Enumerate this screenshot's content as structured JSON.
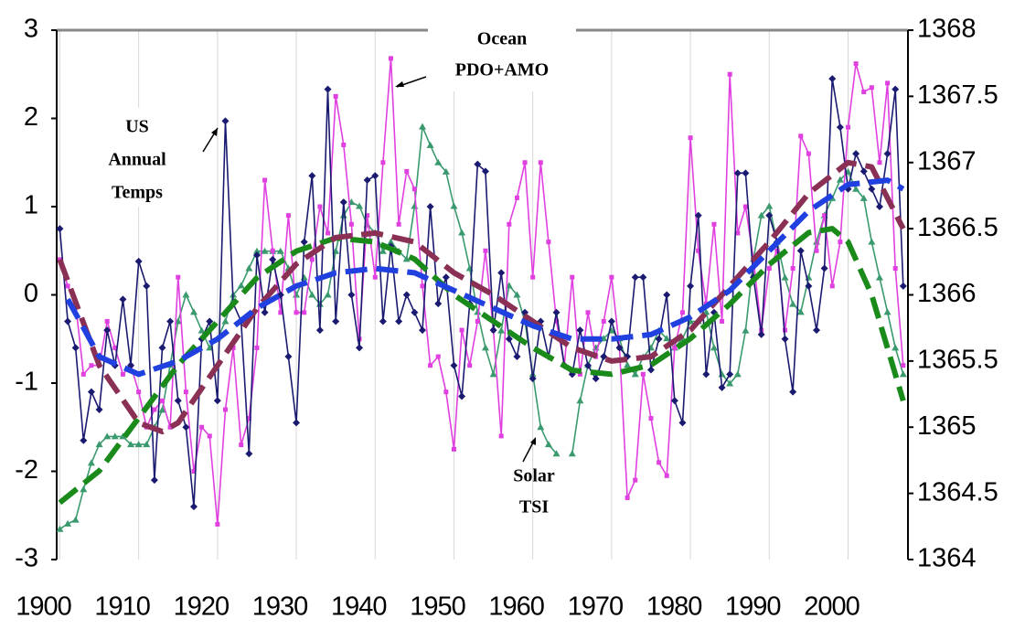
{
  "chart_data": {
    "type": "line",
    "x": [
      1900,
      1901,
      1902,
      1903,
      1904,
      1905,
      1906,
      1907,
      1908,
      1909,
      1910,
      1911,
      1912,
      1913,
      1914,
      1915,
      1916,
      1917,
      1918,
      1919,
      1920,
      1921,
      1922,
      1923,
      1924,
      1925,
      1926,
      1927,
      1928,
      1929,
      1930,
      1931,
      1932,
      1933,
      1934,
      1935,
      1936,
      1937,
      1938,
      1939,
      1940,
      1941,
      1942,
      1943,
      1944,
      1945,
      1946,
      1947,
      1948,
      1949,
      1950,
      1951,
      1952,
      1953,
      1954,
      1955,
      1956,
      1957,
      1958,
      1959,
      1960,
      1961,
      1962,
      1963,
      1964,
      1965,
      1966,
      1967,
      1968,
      1969,
      1970,
      1971,
      1972,
      1973,
      1974,
      1975,
      1976,
      1977,
      1978,
      1979,
      1980,
      1981,
      1982,
      1983,
      1984,
      1985,
      1986,
      1987,
      1988,
      1989,
      1990,
      1991,
      1992,
      1993,
      1994,
      1995,
      1996,
      1997,
      1998,
      1999,
      2000,
      2001,
      2002,
      2003,
      2004,
      2005,
      2006,
      2007
    ],
    "xlim": [
      1899.6,
      2007.6
    ],
    "xticks": [
      1900,
      1910,
      1920,
      1930,
      1940,
      1950,
      1960,
      1970,
      1980,
      1990,
      2000
    ],
    "ylim": [
      -3,
      3
    ],
    "yticks": [
      -3,
      -2,
      -1,
      0,
      1,
      2,
      3
    ],
    "y2lim": [
      1364,
      1368
    ],
    "y2ticks": [
      1364,
      1364.5,
      1365,
      1365.5,
      1366,
      1366.5,
      1367,
      1367.5,
      1368
    ],
    "grid": true,
    "annotations": [
      {
        "lines": [
          "US",
          "Annual",
          "Temps"
        ]
      },
      {
        "lines": [
          "Ocean",
          "PDO+AMO"
        ]
      },
      {
        "lines": [
          "Solar",
          "TSI"
        ]
      }
    ],
    "series": [
      {
        "color": "#3a9a6e",
        "marker": "triangle",
        "axis": "y2",
        "values": [
          1364.23,
          1364.27,
          1364.3,
          1364.53,
          1364.73,
          1364.87,
          1364.93,
          1364.93,
          1364.93,
          1364.87,
          1364.87,
          1364.87,
          1365.0,
          1365.13,
          1365.47,
          1365.8,
          1366.0,
          1365.87,
          1365.73,
          1365.6,
          1365.67,
          1365.8,
          1366.0,
          1366.07,
          1366.2,
          1366.33,
          1366.33,
          1366.33,
          1366.33,
          1366.2,
          1366.0,
          1366.13,
          1366.0,
          1365.93,
          1366.0,
          1366.33,
          1366.6,
          1366.7,
          1366.67,
          1366.53,
          1366.47,
          1366.33,
          1366.4,
          1366.33,
          1366.27,
          1366.67,
          1367.27,
          1367.13,
          1367.0,
          1366.93,
          1366.67,
          1366.47,
          1366.2,
          1365.87,
          1365.6,
          1365.4,
          1365.73,
          1366.07,
          1366.0,
          1365.8,
          1365.4,
          1365.0,
          1364.87,
          1364.8,
          null,
          1364.8,
          1365.2,
          1365.47,
          1365.6,
          1365.67,
          1365.73,
          1365.67,
          1365.47,
          1365.4,
          1365.53,
          1365.6,
          1365.73,
          1365.67,
          1365.6,
          1365.67,
          1365.8,
          1365.8,
          1365.87,
          1365.6,
          1365.4,
          1365.33,
          1365.4,
          1365.73,
          1366.27,
          1366.6,
          1366.67,
          1366.4,
          1366.13,
          1365.93,
          1365.87,
          1366.13,
          1366.4,
          1366.6,
          1366.73,
          1366.87,
          1366.93,
          1366.8,
          1366.73,
          1366.4,
          1366.13,
          1365.87,
          1365.6,
          1365.4
        ]
      },
      {
        "color": "#e040e0",
        "marker": "square",
        "values": [
          0.4,
          0.1,
          -0.1,
          -0.9,
          -0.8,
          -0.8,
          -0.3,
          -0.6,
          -0.9,
          -0.8,
          -1.1,
          -1.5,
          -1.3,
          -1.2,
          -1.5,
          0.2,
          -1.1,
          -2.0,
          -1.5,
          -1.6,
          -2.6,
          -1.3,
          -0.6,
          -1.7,
          -1.4,
          -0.6,
          1.3,
          0.5,
          -0.2,
          0.9,
          -0.2,
          -0.2,
          0.4,
          1.0,
          0.7,
          2.25,
          1.7,
          0.8,
          -0.5,
          0.9,
          0.2,
          1.5,
          2.68,
          0.8,
          1.4,
          1.2,
          0.1,
          -0.8,
          -0.7,
          -1.1,
          -1.75,
          -0.4,
          -0.8,
          -0.3,
          0.5,
          -0.4,
          -1.6,
          0.8,
          1.1,
          1.5,
          0.2,
          1.5,
          0.6,
          -0.3,
          -0.8,
          0.2,
          -0.9,
          -0.2,
          -0.7,
          -0.3,
          0.2,
          -0.6,
          -2.3,
          -2.1,
          -0.9,
          -1.4,
          -1.9,
          -2.05,
          -0.6,
          -0.2,
          1.78,
          0.5,
          -0.1,
          0.8,
          -0.3,
          2.5,
          0.7,
          1.0,
          0.4,
          -0.4,
          0.3,
          0.5,
          -0.4,
          0.3,
          1.8,
          1.6,
          0.5,
          0.9,
          0.1,
          0.6,
          1.9,
          2.62,
          2.3,
          2.35,
          1.5,
          2.4,
          0.3,
          -0.8
        ]
      },
      {
        "color": "#1a1a70",
        "marker": "diamond",
        "values": [
          0.75,
          -0.3,
          -0.6,
          -1.65,
          -1.1,
          -1.3,
          -0.4,
          -0.8,
          -0.05,
          -0.8,
          0.38,
          0.1,
          -2.1,
          -0.6,
          -0.3,
          -1.2,
          -1.5,
          -2.4,
          -0.5,
          -0.3,
          -1.2,
          1.97,
          -0.1,
          -0.3,
          -1.8,
          0.45,
          -0.2,
          0.4,
          0.0,
          -0.7,
          -1.45,
          0.6,
          1.35,
          -0.4,
          2.33,
          -0.3,
          1.05,
          0.0,
          -0.6,
          1.3,
          1.35,
          -0.3,
          0.55,
          -0.3,
          0.0,
          -0.2,
          -0.4,
          1.0,
          -0.1,
          0.2,
          -0.8,
          -1.15,
          -0.1,
          1.48,
          1.4,
          -0.4,
          0.25,
          -0.5,
          -0.7,
          -0.2,
          -0.95,
          -0.3,
          -0.7,
          -0.2,
          -0.8,
          -0.9,
          -0.4,
          -0.8,
          -0.95,
          -0.7,
          -0.3,
          -0.6,
          -0.7,
          0.2,
          0.2,
          -0.85,
          -0.5,
          0.0,
          -1.2,
          -1.45,
          0.1,
          0.9,
          -0.9,
          -0.2,
          -1.05,
          -0.9,
          1.38,
          1.38,
          0.2,
          -0.45,
          0.9,
          0.6,
          -0.5,
          -1.1,
          0.5,
          0.1,
          -0.4,
          0.3,
          2.45,
          1.9,
          1.2,
          1.6,
          1.4,
          1.2,
          1.0,
          1.6,
          2.33,
          0.1
        ]
      },
      {
        "color": "#1a8a1a",
        "dashed": true,
        "axis": "y2",
        "x": [
          1900,
          1905,
          1910,
          1915,
          1920,
          1925,
          1930,
          1935,
          1940,
          1945,
          1950,
          1955,
          1960,
          1965,
          1970,
          1975,
          1980,
          1985,
          1990,
          1995,
          1998,
          2000,
          2003,
          2007
        ],
        "values": [
          1364.43,
          1364.67,
          1365.07,
          1365.47,
          1365.8,
          1366.13,
          1366.33,
          1366.43,
          1366.4,
          1366.27,
          1366.0,
          1365.8,
          1365.6,
          1365.43,
          1365.4,
          1365.47,
          1365.67,
          1365.93,
          1366.23,
          1366.47,
          1366.5,
          1366.4,
          1366.0,
          1365.2
        ]
      },
      {
        "color": "#8a3055",
        "dashed": true,
        "x": [
          1900,
          1905,
          1910,
          1913,
          1915,
          1920,
          1925,
          1930,
          1935,
          1940,
          1945,
          1950,
          1955,
          1960,
          1965,
          1970,
          1975,
          1980,
          1985,
          1990,
          1995,
          2000,
          2003,
          2007
        ],
        "values": [
          0.4,
          -0.8,
          -1.45,
          -1.55,
          -1.45,
          -0.8,
          -0.15,
          0.35,
          0.65,
          0.7,
          0.6,
          0.25,
          0.0,
          -0.3,
          -0.6,
          -0.75,
          -0.7,
          -0.4,
          0.1,
          0.6,
          1.15,
          1.5,
          1.45,
          0.75
        ]
      },
      {
        "color": "#2040e0",
        "dashed": true,
        "x": [
          1901,
          1905,
          1910,
          1915,
          1920,
          1925,
          1930,
          1935,
          1940,
          1945,
          1950,
          1955,
          1960,
          1965,
          1970,
          1975,
          1980,
          1985,
          1990,
          1995,
          2000,
          2005,
          2007
        ],
        "values": [
          -0.05,
          -0.7,
          -0.9,
          -0.75,
          -0.5,
          -0.15,
          0.1,
          0.25,
          0.3,
          0.25,
          0.05,
          -0.15,
          -0.35,
          -0.5,
          -0.5,
          -0.45,
          -0.25,
          0.05,
          0.5,
          0.95,
          1.25,
          1.3,
          1.2
        ]
      }
    ]
  }
}
